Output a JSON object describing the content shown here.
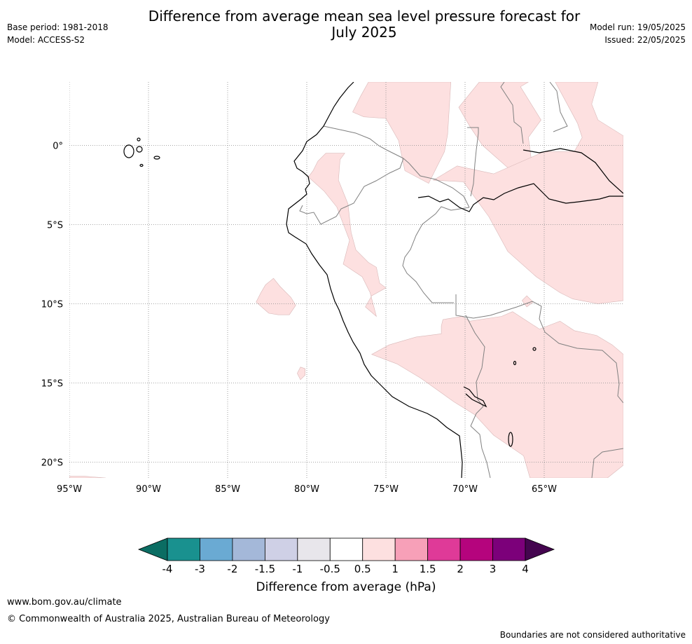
{
  "header": {
    "title_line1": "Difference from average mean sea level pressure forecast for",
    "title_line2": "July 2025",
    "base_period": "Base period: 1981-2018",
    "model": "Model: ACCESS-S2",
    "model_run": "Model run: 19/05/2025",
    "issued": "Issued: 22/05/2025"
  },
  "map": {
    "lon_range": [
      -95,
      -60
    ],
    "lat_range": [
      -21,
      4
    ],
    "lat_ticks": [
      {
        "value": 0,
        "label": "0°"
      },
      {
        "value": -5,
        "label": "5°S"
      },
      {
        "value": -10,
        "label": "10°S"
      },
      {
        "value": -15,
        "label": "15°S"
      },
      {
        "value": -20,
        "label": "20°S"
      }
    ],
    "lon_ticks": [
      {
        "value": -95,
        "label": "95°W"
      },
      {
        "value": -90,
        "label": "90°W"
      },
      {
        "value": -85,
        "label": "85°W"
      },
      {
        "value": -80,
        "label": "80°W"
      },
      {
        "value": -75,
        "label": "75°W"
      },
      {
        "value": -70,
        "label": "70°W"
      },
      {
        "value": -65,
        "label": "65°W"
      }
    ],
    "gridlines": true,
    "anomaly_fill_color": "#fde0e0",
    "regions": [
      {
        "range": "0.5 to 1",
        "points": [
          [
            -76.1,
            4
          ],
          [
            -70.9,
            4
          ],
          [
            -71.1,
            0.7
          ],
          [
            -71.3,
            -0.4
          ],
          [
            -72.3,
            -2.4
          ],
          [
            -73.8,
            -1.6
          ],
          [
            -74.2,
            0.3
          ],
          [
            -75,
            1.7
          ],
          [
            -76.4,
            1.8
          ],
          [
            -77.1,
            2.1
          ],
          [
            -76.6,
            3.1
          ]
        ]
      },
      {
        "range": "0.5 to 1",
        "points": [
          [
            -69.1,
            4
          ],
          [
            -70.4,
            2.4
          ],
          [
            -69.7,
            1.2
          ],
          [
            -68.9,
            0
          ],
          [
            -67.2,
            -1.5
          ],
          [
            -65.8,
            -1
          ],
          [
            -66,
            0.5
          ],
          [
            -65.2,
            1.6
          ],
          [
            -66.5,
            3.7
          ],
          [
            -66,
            4
          ]
        ]
      },
      {
        "range": "0.5 to 1",
        "points": [
          [
            -64.3,
            4
          ],
          [
            -61.6,
            4
          ],
          [
            -62,
            2.6
          ],
          [
            -61.6,
            1.6
          ],
          [
            -60,
            0.6
          ],
          [
            -60,
            -9.8
          ],
          [
            -61.6,
            -10
          ],
          [
            -63.2,
            -9.7
          ],
          [
            -64,
            -9.3
          ],
          [
            -65.5,
            -8.3
          ],
          [
            -67.3,
            -6.7
          ],
          [
            -68.5,
            -4.5
          ],
          [
            -70.1,
            -2.3
          ],
          [
            -72,
            -2.2
          ],
          [
            -70.5,
            -1.3
          ],
          [
            -68.2,
            -1.8
          ],
          [
            -65,
            -0.4
          ],
          [
            -63.1,
            -0.4
          ],
          [
            -62.6,
            0.5
          ],
          [
            -62.9,
            1.4
          ]
        ]
      },
      {
        "range": "0.5 to 1",
        "points": [
          [
            -77.6,
            -0.5
          ],
          [
            -77.9,
            -0.9
          ],
          [
            -78,
            -2.2
          ],
          [
            -77.4,
            -3.7
          ],
          [
            -77.2,
            -5.5
          ],
          [
            -76.9,
            -6.6
          ],
          [
            -76.1,
            -7.4
          ],
          [
            -75.6,
            -7.7
          ],
          [
            -75.4,
            -8.7
          ],
          [
            -75,
            -9
          ],
          [
            -75.9,
            -9.5
          ],
          [
            -76.3,
            -10.2
          ],
          [
            -75.6,
            -10.8
          ],
          [
            -76,
            -9.3
          ],
          [
            -76.5,
            -8.3
          ],
          [
            -77.7,
            -7.5
          ],
          [
            -77.3,
            -6
          ],
          [
            -78.1,
            -3.9
          ],
          [
            -78.9,
            -2.9
          ],
          [
            -79.9,
            -2
          ],
          [
            -79.6,
            -1.6
          ],
          [
            -79.3,
            -1
          ],
          [
            -78.8,
            -0.5
          ]
        ]
      },
      {
        "range": "0.5 to 1",
        "points": [
          [
            -82.6,
            -8.8
          ],
          [
            -82.9,
            -9.3
          ],
          [
            -83.2,
            -9.9
          ],
          [
            -82.4,
            -10.6
          ],
          [
            -81.8,
            -10.7
          ],
          [
            -81.1,
            -10.7
          ],
          [
            -80.7,
            -10.1
          ],
          [
            -81,
            -9.6
          ],
          [
            -81.7,
            -8.9
          ],
          [
            -82.1,
            -8.4
          ]
        ]
      },
      {
        "range": "0.5 to 1",
        "points": [
          [
            -80.4,
            -14
          ],
          [
            -80.6,
            -14.4
          ],
          [
            -80.4,
            -14.8
          ],
          [
            -80.1,
            -14.5
          ],
          [
            -80.1,
            -14.1
          ]
        ]
      },
      {
        "range": "0.5 to 1",
        "points": [
          [
            -66.1,
            -9.5
          ],
          [
            -66.4,
            -9.8
          ],
          [
            -66.1,
            -10.2
          ],
          [
            -65.7,
            -9.9
          ]
        ]
      },
      {
        "range": "0.5 to 1",
        "points": [
          [
            -71.4,
            -11
          ],
          [
            -70.2,
            -10.8
          ],
          [
            -69.7,
            -11.1
          ],
          [
            -67.7,
            -10.8
          ],
          [
            -67,
            -10.5
          ],
          [
            -65.3,
            -11.6
          ],
          [
            -64,
            -11.1
          ],
          [
            -63.1,
            -11.7
          ],
          [
            -61.7,
            -12
          ],
          [
            -60.7,
            -12.6
          ],
          [
            -60,
            -13.2
          ],
          [
            -60,
            -20.2
          ],
          [
            -61,
            -21
          ],
          [
            -65.9,
            -21
          ],
          [
            -66.3,
            -19.6
          ],
          [
            -68.2,
            -18.3
          ],
          [
            -69.4,
            -17
          ],
          [
            -70.7,
            -16.2
          ],
          [
            -72.8,
            -14.7
          ],
          [
            -74.3,
            -13.8
          ],
          [
            -75.9,
            -13.2
          ],
          [
            -74.8,
            -12.6
          ],
          [
            -73.1,
            -12.1
          ],
          [
            -71.5,
            -11.9
          ],
          [
            -71.5,
            -11.4
          ]
        ]
      },
      {
        "range": "0.5 to 1",
        "points": [
          [
            -95,
            -21
          ],
          [
            -95,
            -20.9
          ],
          [
            -94,
            -20.9
          ],
          [
            -92.7,
            -21
          ]
        ]
      }
    ]
  },
  "colorbar": {
    "label": "Difference from average (hPa)",
    "tick_labels": [
      "-4",
      "-3",
      "-2",
      "-1.5",
      "-1",
      "-0.5",
      "0.5",
      "1",
      "1.5",
      "2",
      "3",
      "4"
    ],
    "colors": [
      "#19918f",
      "#6aaad3",
      "#a4b8d9",
      "#cfd0e6",
      "#e8e6eb",
      "#ffffff",
      "#fde0e0",
      "#f7a0b8",
      "#df3a98",
      "#b5047d",
      "#7c007a"
    ],
    "under_color": "#0b6d63",
    "over_color": "#44054f"
  },
  "footer": {
    "url": "www.bom.gov.au/climate",
    "copyright": "© Commonwealth of Australia 2025, Australian Bureau of Meteorology",
    "disclaimer": "Boundaries are not considered authoritative"
  }
}
